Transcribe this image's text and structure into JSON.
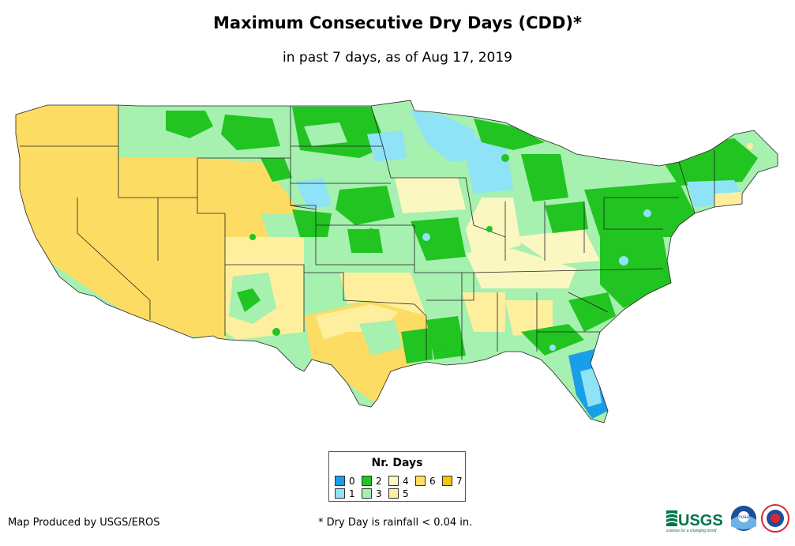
{
  "header": {
    "title": "Maximum Consecutive Dry Days (CDD)*",
    "subtitle": "in past 7 days, as of Aug 17, 2019"
  },
  "legend": {
    "title": "Nr. Days",
    "items": [
      {
        "label": "0",
        "color": "#1a9ee8"
      },
      {
        "label": "1",
        "color": "#8ee3f6"
      },
      {
        "label": "2",
        "color": "#21c421"
      },
      {
        "label": "3",
        "color": "#a6f0b0"
      },
      {
        "label": "4",
        "color": "#fbf7c1"
      },
      {
        "label": "5",
        "color": "#fdef9e"
      },
      {
        "label": "6",
        "color": "#fddc63"
      },
      {
        "label": "7",
        "color": "#fcc200"
      }
    ]
  },
  "footer": {
    "credit": "Map Produced by USGS/EROS",
    "footnote": "* Dry Day is rainfall < 0.04 in."
  },
  "logos": [
    {
      "icon": "usgs-logo-icon",
      "text": "USGS",
      "tagline": "science for a changing world",
      "color": "#00754a"
    },
    {
      "icon": "noaa-logo-icon",
      "text": "noaa",
      "color": "#1b4f9c"
    },
    {
      "icon": "nws-logo-icon",
      "color": "#d7282f"
    }
  ]
}
